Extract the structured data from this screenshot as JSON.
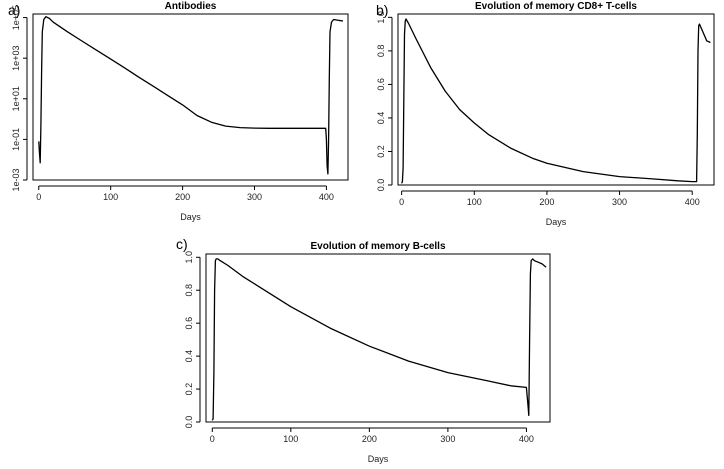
{
  "panels": {
    "a": {
      "letter": "a)"
    },
    "b": {
      "letter": "b)"
    },
    "c": {
      "letter": "c)"
    }
  },
  "chart_data": [
    {
      "id": "a",
      "type": "line",
      "title": "Antibodies",
      "xlabel": "Days",
      "ylabel": "",
      "y_scale": "log10",
      "xlim": [
        -8,
        430
      ],
      "ylim": [
        0.001,
        150000
      ],
      "xticks": [
        0,
        100,
        200,
        300,
        400
      ],
      "xtick_labels": [
        "0",
        "100",
        "200",
        "300",
        "400"
      ],
      "yticks": [
        0.001,
        0.1,
        10,
        1000,
        100000
      ],
      "ytick_labels": [
        "1e-03",
        "1e-01",
        "1e+01",
        "1e+03",
        "1e+05"
      ],
      "grid": false,
      "series": [
        {
          "x": [
            0,
            1,
            2,
            3,
            4,
            5,
            7,
            10,
            15,
            20,
            40,
            60,
            80,
            100,
            120,
            140,
            160,
            180,
            200,
            220,
            240,
            260,
            280,
            300,
            320,
            340,
            360,
            380,
            399,
            400,
            401,
            402,
            403,
            404,
            405,
            407,
            410,
            415,
            420,
            423
          ],
          "y": [
            0.08,
            0.02,
            0.007,
            0.5,
            200,
            20000,
            80000,
            110000,
            90000,
            60000,
            20000,
            7000,
            2500,
            900,
            320,
            110,
            40,
            14,
            5,
            1.5,
            0.7,
            0.45,
            0.38,
            0.36,
            0.35,
            0.35,
            0.35,
            0.35,
            0.35,
            0.1,
            0.005,
            0.002,
            0.1,
            100,
            20000,
            60000,
            80000,
            75000,
            70000,
            68000
          ]
        }
      ]
    },
    {
      "id": "b",
      "type": "line",
      "title": "Evolution of memory CD8+ T-cells",
      "xlabel": "Days",
      "ylabel": "",
      "xlim": [
        -5,
        430
      ],
      "ylim": [
        0,
        1.02
      ],
      "xticks": [
        0,
        100,
        200,
        300,
        400
      ],
      "xtick_labels": [
        "0",
        "100",
        "200",
        "300",
        "400"
      ],
      "yticks": [
        0,
        0.2,
        0.4,
        0.6,
        0.8,
        1.0
      ],
      "ytick_labels": [
        "0.0",
        "0.2",
        "0.4",
        "0.6",
        "0.8",
        "1.0"
      ],
      "grid": false,
      "series": [
        {
          "x": [
            0,
            1,
            2,
            3,
            4,
            5,
            6,
            10,
            20,
            40,
            60,
            80,
            100,
            120,
            150,
            180,
            200,
            250,
            300,
            350,
            380,
            400,
            405,
            406,
            407,
            408,
            409,
            410,
            412,
            415,
            418,
            420,
            425
          ],
          "y": [
            0.01,
            0.02,
            0.1,
            0.5,
            0.9,
            0.98,
            0.99,
            0.96,
            0.87,
            0.7,
            0.56,
            0.45,
            0.37,
            0.3,
            0.22,
            0.16,
            0.13,
            0.08,
            0.05,
            0.035,
            0.025,
            0.02,
            0.02,
            0.02,
            0.3,
            0.8,
            0.95,
            0.96,
            0.94,
            0.91,
            0.88,
            0.86,
            0.85
          ]
        }
      ]
    },
    {
      "id": "c",
      "type": "line",
      "title": "Evolution of memory B-cells",
      "xlabel": "Days",
      "ylabel": "",
      "xlim": [
        -8,
        430
      ],
      "ylim": [
        0,
        1.02
      ],
      "xticks": [
        0,
        100,
        200,
        300,
        400
      ],
      "xtick_labels": [
        "0",
        "100",
        "200",
        "300",
        "400"
      ],
      "yticks": [
        0,
        0.2,
        0.4,
        0.6,
        0.8,
        1.0
      ],
      "ytick_labels": [
        "0.0",
        "0.2",
        "0.4",
        "0.6",
        "0.8",
        "1.0"
      ],
      "grid": false,
      "series": [
        {
          "x": [
            0,
            1,
            2,
            3,
            4,
            5,
            7,
            10,
            20,
            40,
            60,
            80,
            100,
            150,
            200,
            250,
            300,
            350,
            380,
            400,
            402,
            403,
            404,
            405,
            406,
            408,
            410,
            415,
            420,
            425
          ],
          "y": [
            0.01,
            0.02,
            0.3,
            0.8,
            0.98,
            0.99,
            0.99,
            0.98,
            0.95,
            0.88,
            0.82,
            0.76,
            0.7,
            0.57,
            0.46,
            0.37,
            0.3,
            0.25,
            0.22,
            0.21,
            0.1,
            0.04,
            0.5,
            0.9,
            0.98,
            0.99,
            0.98,
            0.97,
            0.96,
            0.94
          ]
        }
      ]
    }
  ]
}
